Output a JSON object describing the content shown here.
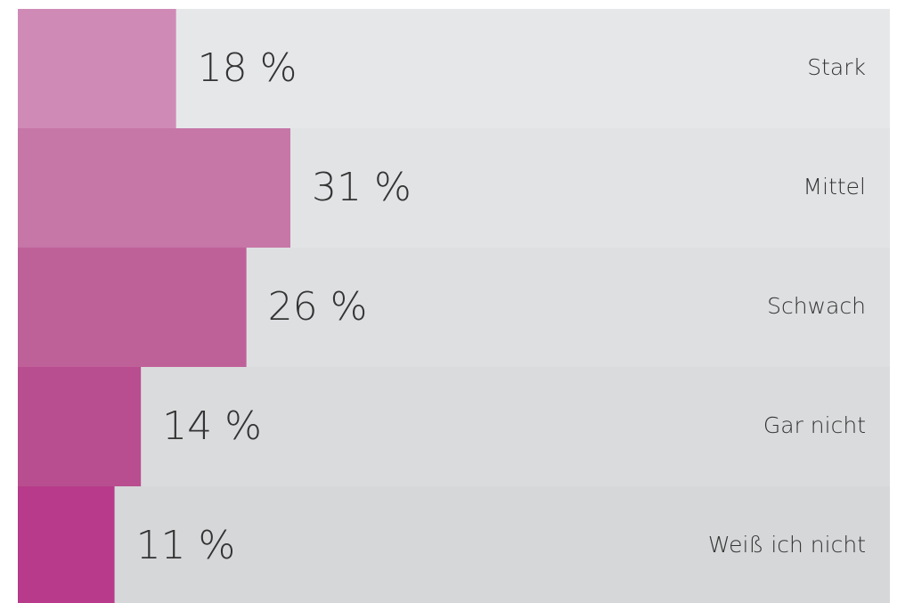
{
  "chart_data": {
    "type": "barh",
    "categories": [
      "Stark",
      "Mittel",
      "Schwach",
      "Gar nicht",
      "Weiß ich nicht"
    ],
    "values": [
      18,
      31,
      26,
      14,
      11
    ],
    "value_labels": [
      "18 %",
      "31 %",
      "26 %",
      "14 %",
      "11 %"
    ],
    "colors": [
      "#cf8bb6",
      "#c676a7",
      "#bf6199",
      "#b84e8f",
      "#b73b8a"
    ],
    "xlim": [
      0,
      100
    ]
  }
}
